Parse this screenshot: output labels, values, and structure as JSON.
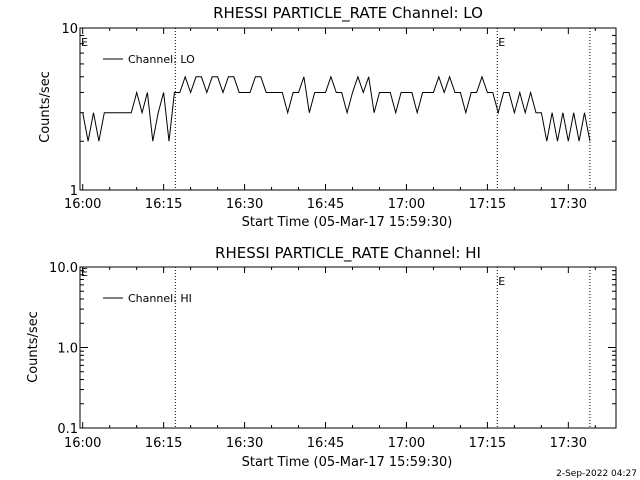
{
  "footer": {
    "timestamp": "2-Sep-2022 04:27"
  },
  "chart_data": [
    {
      "type": "line",
      "title": "RHESSI PARTICLE_RATE Channel: LO",
      "xlabel": "Start Time (05-Mar-17 15:59:30)",
      "ylabel": "Counts/sec",
      "y_scale": "log",
      "ylim": [
        1,
        10
      ],
      "yticks": [
        "1",
        "10"
      ],
      "xlim": [
        "15:59:30",
        "17:38:50"
      ],
      "xticks": [
        "16:00",
        "16:15",
        "16:30",
        "16:45",
        "17:00",
        "17:15",
        "17:30"
      ],
      "legend": {
        "placement": "top-left",
        "entries": [
          "Channel: LO"
        ]
      },
      "event_markers": [
        {
          "time": "16:17:10",
          "label": ""
        },
        {
          "time": "17:16:50",
          "label": "E"
        },
        {
          "time": "17:34:00",
          "label": ""
        }
      ],
      "start_marker_label": "E",
      "series": [
        {
          "name": "Channel: LO",
          "x": [
            "16:00:00",
            "16:01:00",
            "16:02:00",
            "16:03:00",
            "16:04:00",
            "16:05:00",
            "16:06:00",
            "16:07:00",
            "16:08:00",
            "16:09:00",
            "16:10:00",
            "16:11:00",
            "16:12:00",
            "16:13:00",
            "16:14:00",
            "16:15:00",
            "16:16:00",
            "16:17:00",
            "16:18:00",
            "16:19:00",
            "16:20:00",
            "16:21:00",
            "16:22:00",
            "16:23:00",
            "16:24:00",
            "16:25:00",
            "16:26:00",
            "16:27:00",
            "16:28:00",
            "16:29:00",
            "16:30:00",
            "16:31:00",
            "16:32:00",
            "16:33:00",
            "16:34:00",
            "16:35:00",
            "16:36:00",
            "16:37:00",
            "16:38:00",
            "16:39:00",
            "16:40:00",
            "16:41:00",
            "16:42:00",
            "16:43:00",
            "16:44:00",
            "16:45:00",
            "16:46:00",
            "16:47:00",
            "16:48:00",
            "16:49:00",
            "16:50:00",
            "16:51:00",
            "16:52:00",
            "16:53:00",
            "16:54:00",
            "16:55:00",
            "16:56:00",
            "16:57:00",
            "16:58:00",
            "16:59:00",
            "17:00:00",
            "17:01:00",
            "17:02:00",
            "17:03:00",
            "17:04:00",
            "17:05:00",
            "17:06:00",
            "17:07:00",
            "17:08:00",
            "17:09:00",
            "17:10:00",
            "17:11:00",
            "17:12:00",
            "17:13:00",
            "17:14:00",
            "17:15:00",
            "17:16:00",
            "17:17:00",
            "17:18:00",
            "17:19:00",
            "17:20:00",
            "17:21:00",
            "17:22:00",
            "17:23:00",
            "17:24:00",
            "17:25:00",
            "17:26:00",
            "17:27:00",
            "17:28:00",
            "17:29:00",
            "17:30:00",
            "17:31:00",
            "17:32:00",
            "17:33:00",
            "17:34:00"
          ],
          "y": [
            3,
            2,
            3,
            2,
            3,
            3,
            3,
            3,
            3,
            3,
            4,
            3,
            4,
            2,
            3,
            4,
            2,
            4,
            4,
            5,
            4,
            5,
            5,
            4,
            5,
            5,
            4,
            5,
            5,
            4,
            4,
            4,
            5,
            5,
            4,
            4,
            4,
            4,
            3,
            4,
            4,
            5,
            3,
            4,
            4,
            4,
            5,
            4,
            4,
            3,
            4,
            5,
            4,
            5,
            3,
            4,
            4,
            4,
            3,
            4,
            4,
            4,
            3,
            4,
            4,
            4,
            5,
            4,
            5,
            4,
            4,
            3,
            4,
            4,
            5,
            4,
            4,
            3,
            4,
            4,
            3,
            4,
            3,
            4,
            3,
            3,
            2,
            3,
            2,
            3,
            2,
            3,
            2,
            3,
            2
          ]
        }
      ]
    },
    {
      "type": "line",
      "title": "RHESSI PARTICLE_RATE Channel: HI",
      "xlabel": "Start Time (05-Mar-17 15:59:30)",
      "ylabel": "Counts/sec",
      "y_scale": "log",
      "ylim": [
        0.1,
        10
      ],
      "yticks": [
        "0.1",
        "1.0",
        "10.0"
      ],
      "xlim": [
        "15:59:30",
        "17:38:50"
      ],
      "xticks": [
        "16:00",
        "16:15",
        "16:30",
        "16:45",
        "17:00",
        "17:15",
        "17:30"
      ],
      "legend": {
        "placement": "top-left",
        "entries": [
          "Channel: HI"
        ]
      },
      "event_markers": [
        {
          "time": "16:17:10",
          "label": ""
        },
        {
          "time": "17:16:50",
          "label": "E"
        },
        {
          "time": "17:34:00",
          "label": ""
        }
      ],
      "start_marker_label": "E",
      "series": [
        {
          "name": "Channel: HI",
          "x": [],
          "y": []
        }
      ]
    }
  ]
}
